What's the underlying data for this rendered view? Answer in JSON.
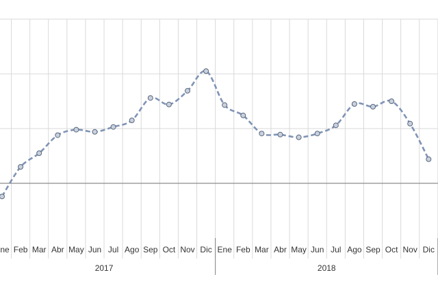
{
  "chart_data": {
    "type": "line",
    "categories": [
      "Ene",
      "Feb",
      "Mar",
      "Abr",
      "May",
      "Jun",
      "Jul",
      "Ago",
      "Sep",
      "Oct",
      "Nov",
      "Dic",
      "Ene",
      "Feb",
      "Mar",
      "Abr",
      "May",
      "Jun",
      "Jul",
      "Ago",
      "Sep",
      "Oct",
      "Nov",
      "Dic"
    ],
    "groups": [
      "2017",
      "2018"
    ],
    "values": [
      -0.24,
      0.3,
      0.55,
      0.88,
      0.98,
      0.94,
      1.03,
      1.15,
      1.56,
      1.44,
      1.69,
      2.05,
      1.43,
      1.24,
      0.91,
      0.89,
      0.84,
      0.91,
      1.06,
      1.45,
      1.4,
      1.5,
      1.09,
      0.44
    ],
    "color": "#7f93b5",
    "ylim": [
      -1,
      3
    ],
    "yticks": [
      0,
      1,
      2,
      3
    ],
    "grid": true
  }
}
